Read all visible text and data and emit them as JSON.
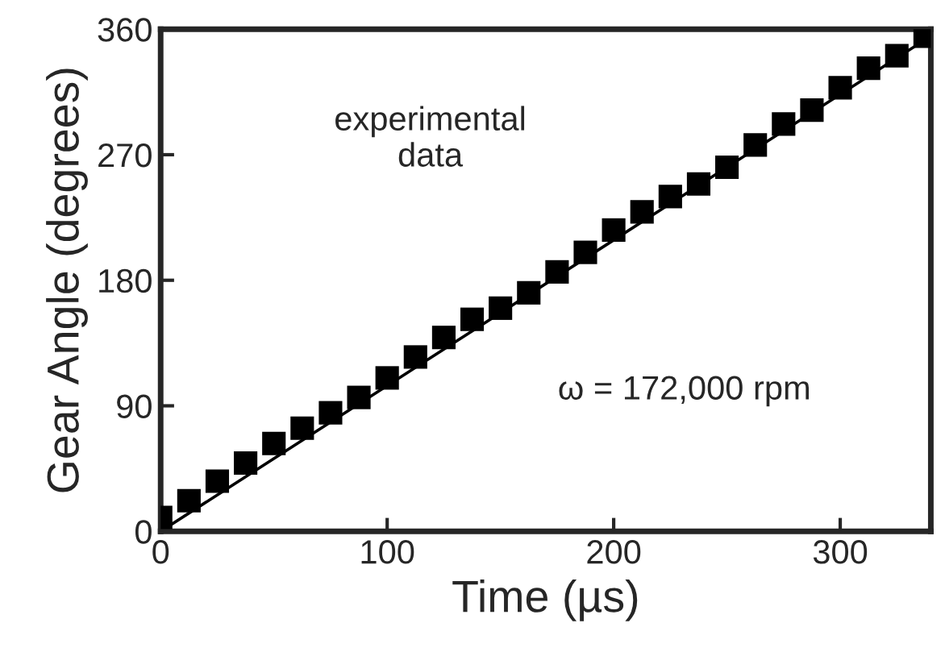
{
  "chart_data": {
    "type": "scatter",
    "xlabel": "Time (µs)",
    "ylabel": "Gear Angle (degrees)",
    "xlim": [
      0,
      340
    ],
    "ylim": [
      0,
      360
    ],
    "xticks": [
      0,
      100,
      200,
      300
    ],
    "yticks": [
      0,
      90,
      180,
      270,
      360
    ],
    "grid": false,
    "legend": false,
    "annotations": [
      "experimental\ndata",
      "ω = 172,000 rpm"
    ],
    "series": [
      {
        "color": "#000000",
        "marker": "square",
        "x": [
          0,
          12.5,
          25,
          37.5,
          50,
          62.5,
          75,
          87.5,
          100,
          112.5,
          125,
          137.5,
          150,
          162.5,
          175,
          187.5,
          200,
          212.5,
          225,
          237.5,
          250,
          262.5,
          275,
          287.5,
          300,
          312.5,
          325,
          337.5
        ],
        "values": [
          10,
          22,
          36,
          49,
          63,
          74,
          85,
          96,
          110,
          125,
          139,
          152,
          160,
          171,
          186,
          200,
          216,
          229,
          240,
          249,
          261,
          277,
          292,
          302,
          318,
          332,
          341,
          355
        ]
      },
      {
        "type": "line",
        "color": "#000000",
        "x": [
          0,
          340
        ],
        "values": [
          0,
          355
        ],
        "line_style": "solid"
      }
    ]
  }
}
